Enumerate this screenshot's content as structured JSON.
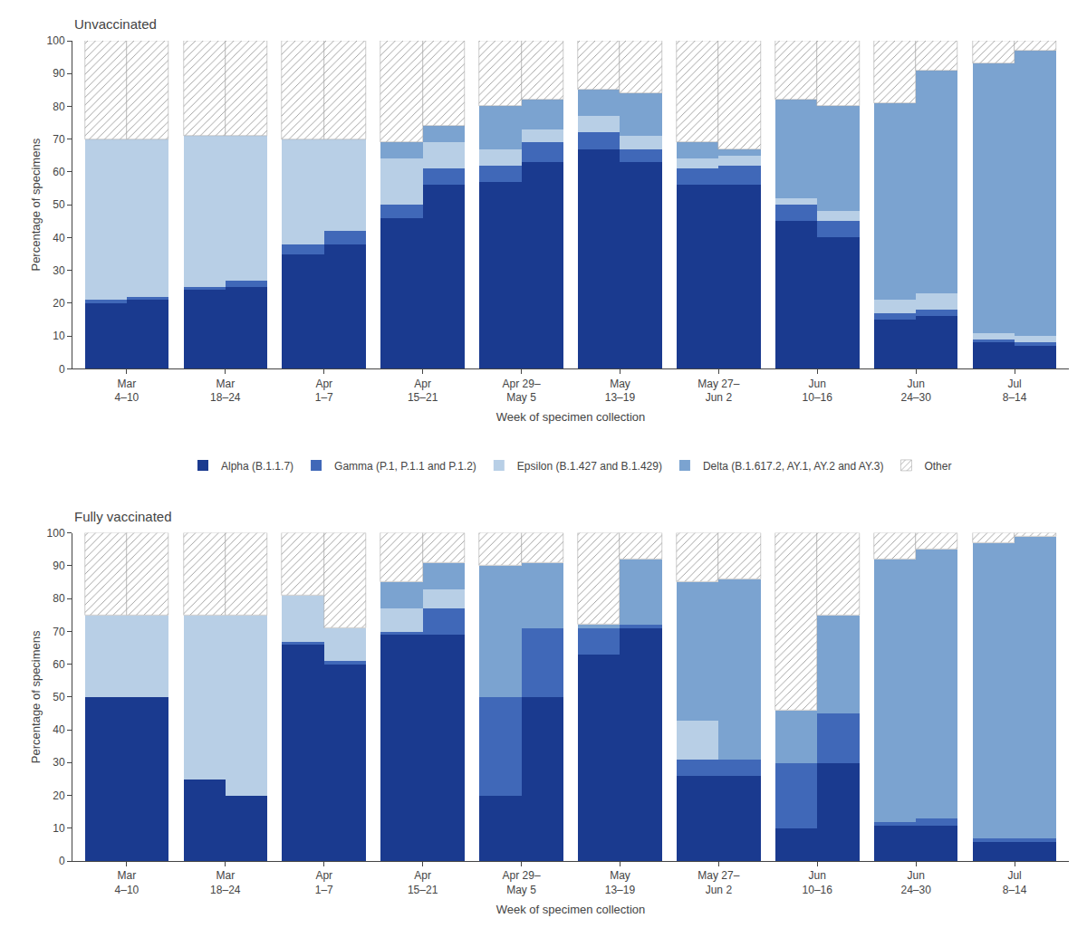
{
  "chart_data": [
    {
      "type": "bar",
      "stacked": true,
      "title": "Unvaccinated",
      "xlabel": "Week of specimen collection",
      "ylabel": "Percentage of specimens",
      "categories": [
        "Mar\n4–10",
        null,
        "Mar\n18–24",
        null,
        "Apr\n1–7",
        null,
        "Apr\n15–21",
        null,
        "Apr 29–\nMay 5",
        null,
        "May\n13–19",
        null,
        "May 27–\nJun 2",
        null,
        "Jun\n10–16",
        null,
        "Jun\n24–30",
        null,
        "Jul\n8–14",
        null
      ],
      "series": [
        {
          "name": "Alpha (B.1.1.7)",
          "color": "#1a3a8f",
          "values": [
            20,
            21,
            24,
            25,
            35,
            38,
            46,
            56,
            57,
            63,
            67,
            63,
            56,
            56,
            45,
            40,
            15,
            16,
            8,
            7
          ]
        },
        {
          "name": "Gamma (P.1, P.1.1 and P.1.2)",
          "color": "#4068b8",
          "values": [
            1,
            1,
            1,
            2,
            3,
            4,
            4,
            5,
            5,
            6,
            5,
            4,
            5,
            6,
            5,
            5,
            2,
            2,
            1,
            1
          ]
        },
        {
          "name": "Epsilon (B.1.427 and B.1.429)",
          "color": "#b8cfe6",
          "values": [
            49,
            48,
            46,
            44,
            32,
            28,
            14,
            8,
            5,
            4,
            5,
            4,
            3,
            3,
            2,
            3,
            4,
            5,
            2,
            2
          ]
        },
        {
          "name": "Delta (B.1.617.2, AY.1, AY.2 and AY.3)",
          "color": "#7ba3d0",
          "values": [
            0,
            0,
            0,
            0,
            0,
            0,
            5,
            5,
            13,
            9,
            8,
            13,
            5,
            2,
            30,
            32,
            60,
            68,
            82,
            87
          ]
        },
        {
          "name": "Other",
          "color": "#ffffff",
          "marker": "hatch",
          "values": [
            30,
            30,
            29,
            29,
            30,
            30,
            31,
            26,
            20,
            18,
            15,
            16,
            31,
            33,
            18,
            20,
            19,
            9,
            7,
            3
          ]
        }
      ],
      "ylim": [
        0,
        100
      ],
      "yticks": [
        0,
        10,
        20,
        30,
        40,
        50,
        60,
        70,
        80,
        90,
        100
      ],
      "grid": false
    },
    {
      "type": "bar",
      "stacked": true,
      "title": "Fully vaccinated",
      "xlabel": "Week of specimen collection",
      "ylabel": "Percentage of specimens",
      "categories": [
        "Mar\n4–10",
        null,
        "Mar\n18–24",
        null,
        "Apr\n1–7",
        null,
        "Apr\n15–21",
        null,
        "Apr 29–\nMay 5",
        null,
        "May\n13–19",
        null,
        "May 27–\nJun 2",
        null,
        "Jun\n10–16",
        null,
        "Jun\n24–30",
        null,
        "Jul\n8–14",
        null
      ],
      "series": [
        {
          "name": "Alpha (B.1.1.7)",
          "color": "#1a3a8f",
          "values": [
            50,
            50,
            25,
            20,
            66,
            60,
            69,
            69,
            20,
            50,
            63,
            71,
            26,
            26,
            10,
            30,
            11,
            11,
            6,
            6
          ]
        },
        {
          "name": "Gamma (P.1, P.1.1 and P.1.2)",
          "color": "#4068b8",
          "values": [
            0,
            0,
            0,
            0,
            1,
            1,
            1,
            8,
            30,
            21,
            8,
            1,
            5,
            5,
            20,
            15,
            1,
            2,
            1,
            1
          ]
        },
        {
          "name": "Epsilon (B.1.427 and B.1.429)",
          "color": "#b8cfe6",
          "values": [
            25,
            25,
            50,
            55,
            14,
            10,
            7,
            6,
            0,
            0,
            0,
            0,
            12,
            0,
            0,
            0,
            0,
            0,
            0,
            0
          ]
        },
        {
          "name": "Delta (B.1.617.2, AY.1, AY.2 and AY.3)",
          "color": "#7ba3d0",
          "values": [
            0,
            0,
            0,
            0,
            0,
            0,
            8,
            8,
            40,
            20,
            1,
            20,
            42,
            55,
            16,
            30,
            80,
            82,
            90,
            92
          ]
        },
        {
          "name": "Other",
          "color": "#ffffff",
          "marker": "hatch",
          "values": [
            25,
            25,
            25,
            25,
            19,
            29,
            15,
            9,
            10,
            9,
            28,
            8,
            15,
            14,
            54,
            25,
            8,
            5,
            3,
            1
          ]
        }
      ],
      "ylim": [
        0,
        100
      ],
      "yticks": [
        0,
        10,
        20,
        30,
        40,
        50,
        60,
        70,
        80,
        90,
        100
      ],
      "grid": false
    }
  ]
}
